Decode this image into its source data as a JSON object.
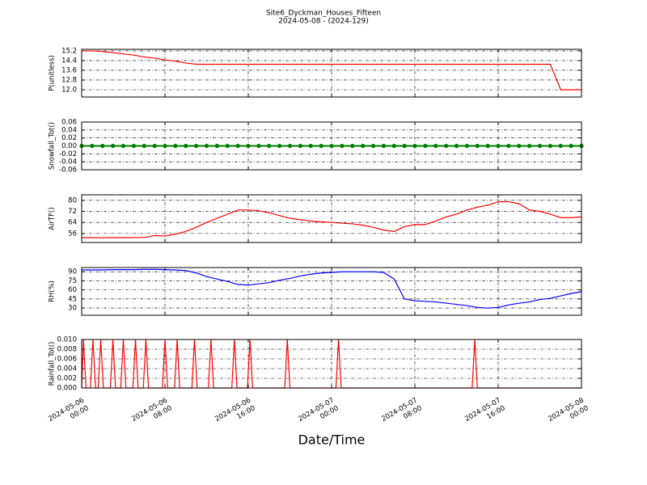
{
  "chart_data": {
    "title": "Site6_Dyckman_Houses_Fifteen",
    "subtitle": "2024-05-08 - (2024-129)",
    "xlabel": "Date/Time",
    "xlim": [
      "2024-05-06 00:00",
      "2024-05-08 00:00"
    ],
    "xticks": [
      "2024-05-06 00:00",
      "2024-05-06 08:00",
      "2024-05-06 16:00",
      "2024-05-07 00:00",
      "2024-05-07 08:00",
      "2024-05-07 16:00",
      "2024-05-08 00:00"
    ],
    "grid": true,
    "x": [
      "2024-05-06 00:00",
      "2024-05-06 01:00",
      "2024-05-06 02:00",
      "2024-05-06 03:00",
      "2024-05-06 04:00",
      "2024-05-06 05:00",
      "2024-05-06 06:00",
      "2024-05-06 07:00",
      "2024-05-06 08:00",
      "2024-05-06 09:00",
      "2024-05-06 10:00",
      "2024-05-06 11:00",
      "2024-05-06 12:00",
      "2024-05-06 13:00",
      "2024-05-06 14:00",
      "2024-05-06 15:00",
      "2024-05-06 16:00",
      "2024-05-06 17:00",
      "2024-05-06 18:00",
      "2024-05-06 19:00",
      "2024-05-06 20:00",
      "2024-05-06 21:00",
      "2024-05-06 22:00",
      "2024-05-06 23:00",
      "2024-05-07 00:00",
      "2024-05-07 01:00",
      "2024-05-07 02:00",
      "2024-05-07 03:00",
      "2024-05-07 04:00",
      "2024-05-07 05:00",
      "2024-05-07 06:00",
      "2024-05-07 07:00",
      "2024-05-07 08:00",
      "2024-05-07 09:00",
      "2024-05-07 10:00",
      "2024-05-07 11:00",
      "2024-05-07 12:00",
      "2024-05-07 13:00",
      "2024-05-07 14:00",
      "2024-05-07 15:00",
      "2024-05-07 16:00",
      "2024-05-07 17:00",
      "2024-05-07 18:00",
      "2024-05-07 19:00",
      "2024-05-07 20:00",
      "2024-05-07 21:00",
      "2024-05-07 22:00",
      "2024-05-07 23:00",
      "2024-05-08 00:00"
    ],
    "panels": [
      {
        "type": "line",
        "ylabel": "P(unitless)",
        "color": "#ff0000",
        "ylim": [
          11.4,
          15.33
        ],
        "yticks": [
          {
            "value": 12,
            "label": "12.0"
          },
          12.8,
          13.6,
          14.4,
          15.2
        ],
        "values": [
          15.2,
          15.2,
          15.15,
          15.05,
          14.95,
          14.85,
          14.7,
          14.6,
          14.45,
          14.35,
          14.2,
          14.1,
          14.1,
          14.1,
          14.1,
          14.1,
          14.1,
          14.1,
          14.1,
          14.1,
          14.1,
          14.1,
          14.1,
          14.1,
          14.1,
          14.1,
          14.1,
          14.1,
          14.1,
          14.1,
          14.1,
          14.1,
          14.1,
          14.1,
          14.1,
          14.1,
          14.1,
          14.1,
          14.1,
          14.1,
          14.1,
          14.1,
          14.1,
          14.1,
          14.1,
          14.1,
          12.0,
          12.0,
          12.0
        ]
      },
      {
        "type": "line",
        "ylabel": "Snowfall_Tot()",
        "color": "#008000",
        "markers": true,
        "ylim": [
          -0.06,
          0.06
        ],
        "yticks": [
          -0.06,
          -0.04,
          -0.02,
          {
            "value": 0,
            "label": "0.00"
          },
          0.02,
          0.04,
          0.06
        ],
        "values": [
          0,
          0,
          0,
          0,
          0,
          0,
          0,
          0,
          0,
          0,
          0,
          0,
          0,
          0,
          0,
          0,
          0,
          0,
          0,
          0,
          0,
          0,
          0,
          0,
          0,
          0,
          0,
          0,
          0,
          0,
          0,
          0,
          0,
          0,
          0,
          0,
          0,
          0,
          0,
          0,
          0,
          0,
          0,
          0,
          0,
          0,
          0,
          0,
          0
        ]
      },
      {
        "type": "line",
        "ylabel": "AirTF()",
        "color": "#ff0000",
        "ylim": [
          49.5,
          84
        ],
        "yticks": [
          56,
          64,
          72,
          80
        ],
        "values": [
          53,
          53,
          52.9,
          53,
          53,
          53.1,
          53.2,
          54.5,
          54.2,
          55.5,
          57.5,
          60.5,
          64,
          67,
          70,
          73,
          73,
          72.5,
          71,
          69,
          67,
          66,
          65,
          64.5,
          64,
          63.5,
          63,
          62,
          60.5,
          58.5,
          57.5,
          61,
          62.5,
          62.5,
          65,
          68,
          70,
          73,
          75,
          76.5,
          79,
          79,
          77.5,
          73,
          72,
          70,
          67.5,
          67.5,
          68
        ]
      },
      {
        "type": "line",
        "ylabel": "RH(%)",
        "color": "#0000ff",
        "ylim": [
          18,
          97
        ],
        "yticks": [
          30,
          45,
          60,
          75,
          90
        ],
        "values": [
          93,
          93,
          93,
          93.5,
          93.5,
          93.5,
          94,
          94,
          93.5,
          93,
          92,
          88,
          82,
          78,
          74,
          69,
          68,
          70,
          72,
          76,
          79,
          83,
          86,
          88,
          89,
          90,
          90,
          90,
          90,
          89,
          78,
          45,
          42,
          41,
          40,
          38,
          36,
          34,
          31,
          30,
          31,
          35,
          38,
          40,
          44,
          46,
          50,
          54,
          57
        ]
      },
      {
        "type": "line",
        "ylabel": "Rainfall_Tot()",
        "color": "#ff0000",
        "ylim": [
          0,
          0.01
        ],
        "yticks": [
          {
            "value": 0,
            "label": "0.000"
          },
          0.002,
          0.004,
          0.006,
          0.008,
          {
            "value": 0.01,
            "label": "0.010"
          }
        ],
        "x": [
          "2024-05-06 00:00",
          "2024-05-06 00:10",
          "2024-05-06 00:25",
          "2024-05-06 00:50",
          "2024-05-06 01:05",
          "2024-05-06 01:20",
          "2024-05-06 01:35",
          "2024-05-06 01:50",
          "2024-05-06 02:05",
          "2024-05-06 02:45",
          "2024-05-06 03:00",
          "2024-05-06 03:15",
          "2024-05-06 03:45",
          "2024-05-06 04:00",
          "2024-05-06 04:15",
          "2024-05-06 04:55",
          "2024-05-06 05:10",
          "2024-05-06 05:25",
          "2024-05-06 05:55",
          "2024-05-06 06:10",
          "2024-05-06 06:25",
          "2024-05-06 07:45",
          "2024-05-06 08:00",
          "2024-05-06 08:15",
          "2024-05-06 08:55",
          "2024-05-06 09:10",
          "2024-05-06 09:25",
          "2024-05-06 10:35",
          "2024-05-06 10:50",
          "2024-05-06 11:05",
          "2024-05-06 12:10",
          "2024-05-06 12:25",
          "2024-05-06 12:40",
          "2024-05-06 14:25",
          "2024-05-06 14:40",
          "2024-05-06 14:55",
          "2024-05-06 15:55",
          "2024-05-06 16:10",
          "2024-05-06 16:25",
          "2024-05-06 19:30",
          "2024-05-06 19:45",
          "2024-05-06 20:00",
          "2024-05-07 00:25",
          "2024-05-07 00:40",
          "2024-05-07 00:55",
          "2024-05-07 13:30",
          "2024-05-07 13:45",
          "2024-05-07 14:00",
          "2024-05-08 00:00"
        ],
        "values": [
          0,
          0.01,
          0,
          0,
          0.01,
          0,
          0,
          0.01,
          0,
          0,
          0.01,
          0,
          0,
          0.01,
          0,
          0,
          0.01,
          0,
          0,
          0.01,
          0,
          0,
          0.01,
          0,
          0,
          0.01,
          0,
          0,
          0.01,
          0,
          0,
          0.01,
          0,
          0,
          0.01,
          0,
          0,
          0.01,
          0,
          0,
          0.01,
          0,
          0,
          0.01,
          0,
          0,
          0.01,
          0,
          0
        ]
      }
    ]
  }
}
